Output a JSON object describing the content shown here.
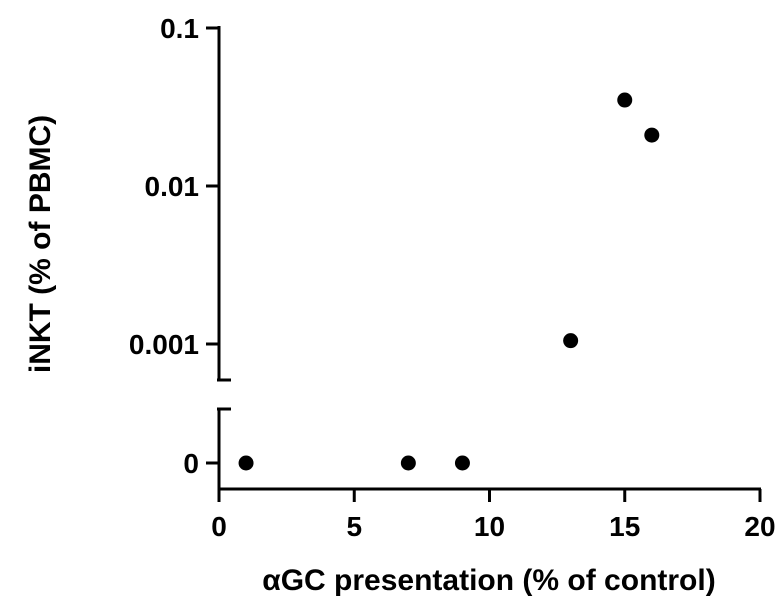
{
  "chart_data": {
    "type": "scatter",
    "xlabel": "αGC presentation (% of control)",
    "ylabel": "iNKT (% of PBMC)",
    "xlim": [
      0,
      20
    ],
    "x_ticks": [
      0,
      5,
      10,
      15,
      20
    ],
    "x_tick_labels": [
      "0",
      "5",
      "10",
      "15",
      "20"
    ],
    "y_scale": "log with broken axis (zero segment below break)",
    "y_ticks": [
      0,
      0.001,
      0.01,
      0.1
    ],
    "y_tick_labels": [
      "0",
      "0.001",
      "0.01",
      "0.1"
    ],
    "grid": false,
    "points": [
      {
        "x": 1,
        "y": 0
      },
      {
        "x": 7,
        "y": 0
      },
      {
        "x": 9,
        "y": 0
      },
      {
        "x": 13,
        "y": 0.00105
      },
      {
        "x": 15,
        "y": 0.035
      },
      {
        "x": 16,
        "y": 0.021
      }
    ],
    "colors": {
      "marker": "#000000",
      "axis": "#000000"
    }
  }
}
